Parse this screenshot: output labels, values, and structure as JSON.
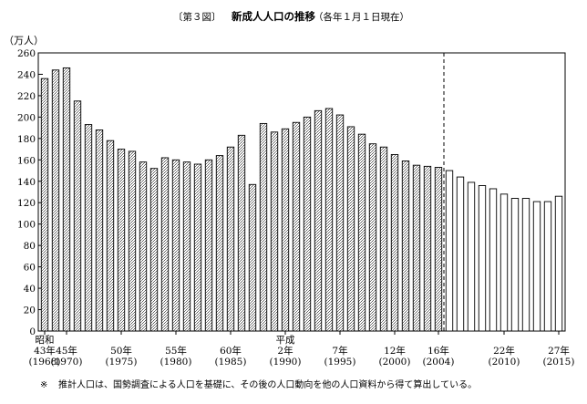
{
  "header": {
    "figure_label": "〔第３図〕",
    "title": "新成人人口の推移",
    "subtitle": "（各年１月１日現在）"
  },
  "footnote": {
    "mark": "※",
    "text": "推計人口は、国勢調査による人口を基礎に、その後の人口動向を他の人口資料から得て算出している。"
  },
  "chart_data": {
    "type": "bar",
    "unit_label": "（万人）",
    "ylim": [
      0,
      260
    ],
    "yticks": [
      0,
      20,
      40,
      60,
      80,
      100,
      120,
      140,
      160,
      180,
      200,
      220,
      240,
      260
    ],
    "grid": false,
    "categories": [
      1968,
      1969,
      1970,
      1971,
      1972,
      1973,
      1974,
      1975,
      1976,
      1977,
      1978,
      1979,
      1980,
      1981,
      1982,
      1983,
      1984,
      1985,
      1986,
      1987,
      1988,
      1989,
      1990,
      1991,
      1992,
      1993,
      1994,
      1995,
      1996,
      1997,
      1998,
      1999,
      2000,
      2001,
      2002,
      2003,
      2004,
      2005,
      2006,
      2007,
      2008,
      2009,
      2010,
      2011,
      2012,
      2013,
      2014,
      2015
    ],
    "series": [
      {
        "style": "hatched",
        "values": [
          236,
          244,
          246,
          215,
          193,
          188,
          178,
          170,
          168,
          158,
          152,
          162,
          160,
          158,
          156,
          160,
          164,
          172,
          183,
          137,
          194,
          186,
          189,
          195,
          200,
          206,
          208,
          202,
          191,
          184,
          175,
          172,
          165,
          159,
          155,
          154,
          153,
          null,
          null,
          null,
          null,
          null,
          null,
          null,
          null,
          null,
          null,
          null
        ]
      },
      {
        "style": "plain",
        "values": [
          null,
          null,
          null,
          null,
          null,
          null,
          null,
          null,
          null,
          null,
          null,
          null,
          null,
          null,
          null,
          null,
          null,
          null,
          null,
          null,
          null,
          null,
          null,
          null,
          null,
          null,
          null,
          null,
          null,
          null,
          null,
          null,
          null,
          null,
          null,
          null,
          null,
          150,
          144,
          139,
          136,
          133,
          128,
          124,
          124,
          121,
          121,
          126
        ]
      }
    ],
    "divider_after": "2004",
    "x_labels": [
      {
        "year": 1968,
        "line1": "昭和",
        "line2": "43年",
        "line3": "(1968)"
      },
      {
        "year": 1970,
        "line1": "",
        "line2": "45年",
        "line3": "(1970)"
      },
      {
        "year": 1975,
        "line1": "",
        "line2": "50年",
        "line3": "(1975)"
      },
      {
        "year": 1980,
        "line1": "",
        "line2": "55年",
        "line3": "(1980)"
      },
      {
        "year": 1985,
        "line1": "",
        "line2": "60年",
        "line3": "(1985)"
      },
      {
        "year": 1990,
        "line1": "平成",
        "line2": "2年",
        "line3": "(1990)"
      },
      {
        "year": 1995,
        "line1": "",
        "line2": "7年",
        "line3": "(1995)"
      },
      {
        "year": 2000,
        "line1": "",
        "line2": "12年",
        "line3": "(2000)"
      },
      {
        "year": 2004,
        "line1": "",
        "line2": "16年",
        "line3": "(2004)"
      },
      {
        "year": 2010,
        "line1": "",
        "line2": "22年",
        "line3": "(2010)"
      },
      {
        "year": 2015,
        "line1": "",
        "line2": "27年",
        "line3": "(2015)"
      }
    ]
  }
}
